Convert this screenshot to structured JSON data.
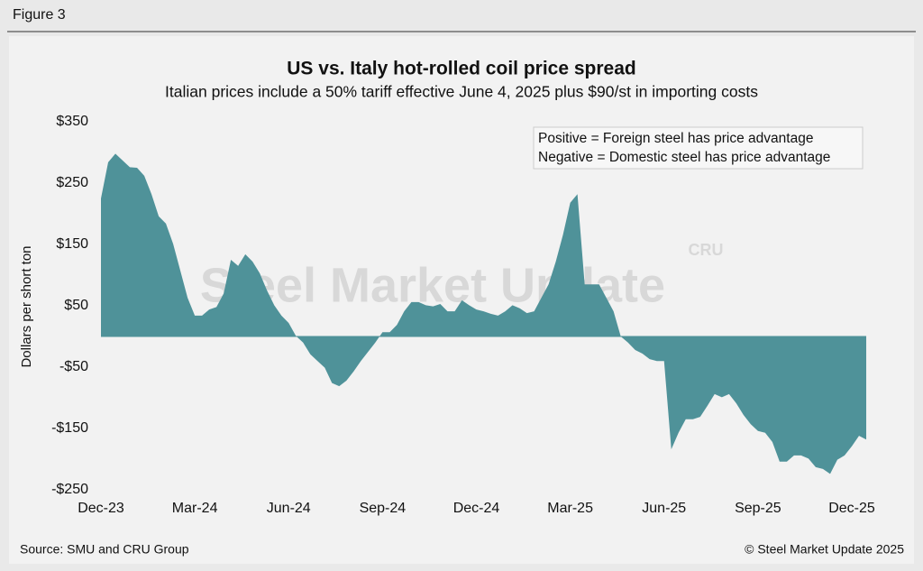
{
  "figure_label": "Figure 3",
  "chart_data": {
    "type": "area",
    "title": "US vs. Italy hot-rolled coil price spread",
    "subtitle": "Italian prices include a 50% tariff effective June 4, 2025 plus $90/st in importing costs",
    "ylabel": "Dollars per short ton",
    "annotations": [
      "Positive = Foreign steel has price advantage",
      "Negative = Domestic steel has price advantage"
    ],
    "watermark": [
      "Steel Market Update",
      "CRU"
    ],
    "source": "Source: SMU and CRU Group",
    "copyright": "© Steel Market Update 2025",
    "categories": [
      "Dec-23",
      null,
      null,
      null,
      null,
      null,
      null,
      null,
      null,
      null,
      null,
      null,
      null,
      "Mar-24",
      null,
      null,
      null,
      null,
      null,
      null,
      null,
      null,
      null,
      null,
      null,
      null,
      "Jun-24",
      null,
      null,
      null,
      null,
      null,
      null,
      null,
      null,
      null,
      null,
      null,
      null,
      "Sep-24",
      null,
      null,
      null,
      null,
      null,
      null,
      null,
      null,
      null,
      null,
      null,
      null,
      "Dec-24",
      null,
      null,
      null,
      null,
      null,
      null,
      null,
      null,
      null,
      null,
      null,
      null,
      "Mar-25",
      null,
      null,
      null,
      null,
      null,
      null,
      null,
      null,
      null,
      null,
      null,
      null,
      "Jun-25",
      null,
      null,
      null,
      null,
      null,
      null,
      null,
      null,
      null,
      null,
      null,
      null,
      "Sep-25",
      null,
      null,
      null,
      null,
      null,
      null,
      null,
      null,
      null,
      null,
      null,
      null,
      "Dec-25",
      null,
      null
    ],
    "series": [
      {
        "name": "Price spread",
        "color": "#4f9299",
        "values": [
          225,
          284,
          298,
          287,
          276,
          275,
          262,
          232,
          196,
          184,
          151,
          107,
          63,
          34,
          34,
          44,
          48,
          70,
          125,
          115,
          134,
          122,
          103,
          75,
          51,
          34,
          22,
          1,
          -10,
          -29,
          -40,
          -51,
          -76,
          -81,
          -72,
          -57,
          -40,
          -25,
          -10,
          7,
          7,
          19,
          41,
          56,
          56,
          51,
          49,
          53,
          41,
          41,
          59,
          51,
          44,
          41,
          37,
          34,
          41,
          51,
          46,
          38,
          41,
          63,
          85,
          122,
          166,
          218,
          232,
          85,
          85,
          85,
          63,
          41,
          0,
          -10,
          -22,
          -28,
          -37,
          -40,
          -40,
          -184,
          -157,
          -135,
          -135,
          -131,
          -113,
          -94,
          -99,
          -94,
          -109,
          -128,
          -143,
          -154,
          -157,
          -172,
          -204,
          -204,
          -194,
          -194,
          -199,
          -213,
          -216,
          -224,
          -201,
          -194,
          -179,
          -162,
          -168
        ]
      }
    ],
    "ylim": [
      -250,
      350
    ],
    "yticks": [
      {
        "value": 350,
        "label": "$350"
      },
      {
        "value": 250,
        "label": "$250"
      },
      {
        "value": 150,
        "label": "$150"
      },
      {
        "value": 50,
        "label": "$50"
      },
      {
        "value": -50,
        "label": "-$50"
      },
      {
        "value": -150,
        "label": "-$150"
      },
      {
        "value": -250,
        "label": "-$250"
      }
    ],
    "grid": false
  }
}
